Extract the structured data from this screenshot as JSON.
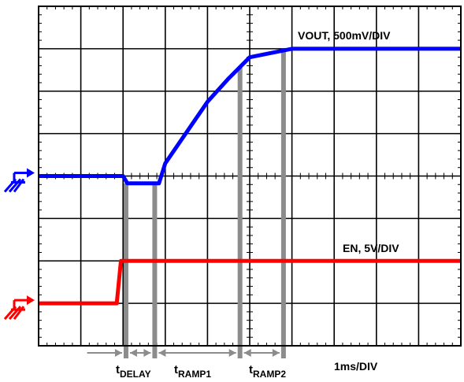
{
  "chart_data": {
    "type": "line",
    "title": "",
    "xlabel": "1ms/DIV",
    "grid": true,
    "divisions": {
      "x": 10,
      "y": 8
    },
    "series": [
      {
        "name": "VOUT, 500mV/DIV",
        "color": "#0000ff",
        "points": [
          [
            0,
            4.0
          ],
          [
            2.0,
            4.0
          ],
          [
            2.1,
            3.83
          ],
          [
            2.35,
            3.83
          ],
          [
            2.85,
            3.83
          ],
          [
            3.0,
            4.3
          ],
          [
            4.0,
            5.75
          ],
          [
            4.5,
            6.3
          ],
          [
            5.0,
            6.8
          ],
          [
            6.0,
            7.0
          ],
          [
            10.0,
            7.0
          ]
        ]
      },
      {
        "name": "EN, 5V/DIV",
        "color": "#ff0000",
        "points": [
          [
            0,
            1.0
          ],
          [
            1.85,
            1.0
          ],
          [
            1.95,
            2.0
          ],
          [
            10.0,
            2.0
          ]
        ]
      }
    ],
    "markers": [
      {
        "x": 2.07,
        "label_main": "t",
        "label_sub": "DELAY"
      },
      {
        "x": 2.75,
        "label_main": "",
        "label_sub": ""
      },
      {
        "x": 4.77,
        "label_main": "t",
        "label_sub": "RAMP1"
      },
      {
        "x": 5.8,
        "label_main": "t",
        "label_sub": "RAMP2"
      }
    ],
    "intervals": [
      [
        2.07,
        2.75
      ],
      [
        2.75,
        4.77
      ],
      [
        4.77,
        5.8
      ]
    ],
    "ground_markers": [
      {
        "name": "vout-ground",
        "y": 4.0,
        "color": "#0000ff"
      },
      {
        "name": "en-ground",
        "y": 1.0,
        "color": "#ff0000"
      }
    ]
  },
  "labels": {
    "vout": "VOUT, 500mV/DIV",
    "en": "EN, 5V/DIV",
    "timebase": "1ms/DIV"
  }
}
